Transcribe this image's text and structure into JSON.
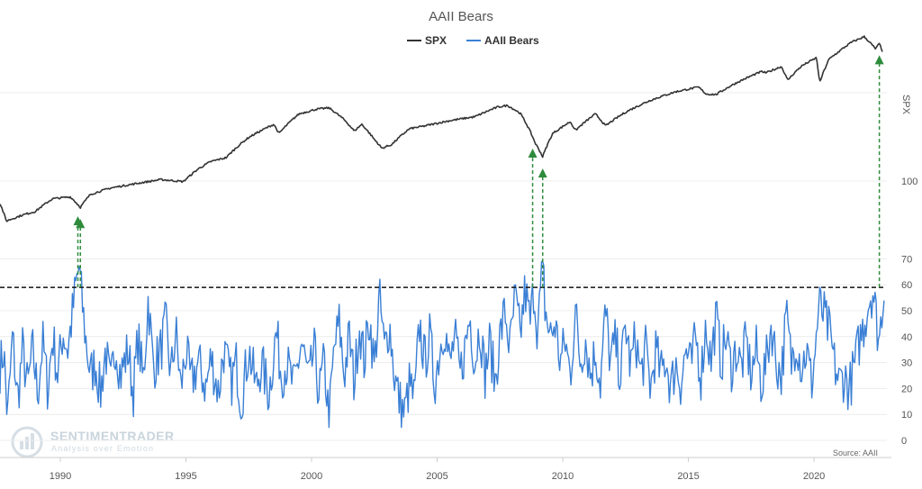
{
  "chart_data": {
    "type": "line",
    "title": "AAII Bears",
    "legend": {
      "placement": "top-center",
      "entries": [
        "SPX",
        "AAII Bears"
      ]
    },
    "colors": {
      "spx": "#333333",
      "bears": "#3a7fd5",
      "threshold": "#111111",
      "arrows": "#2e8b3c"
    },
    "x": {
      "ticks": [
        1990,
        1995,
        2000,
        2005,
        2010,
        2015,
        2020
      ],
      "range": [
        1987.6,
        2022.9
      ]
    },
    "y_bears": {
      "ticks": [
        0,
        10,
        20,
        30,
        40,
        50,
        60,
        70,
        100
      ],
      "range": [
        0,
        100
      ],
      "grid": true
    },
    "y_spx": {
      "label": "SPX",
      "scale": "log",
      "range": [
        260,
        5400
      ]
    },
    "threshold": 59,
    "signals": [
      1990.7,
      1990.8,
      2008.8,
      2009.2,
      2022.6
    ],
    "series": [
      {
        "name": "SPX",
        "points": [
          [
            1987.6,
            320
          ],
          [
            1987.85,
            240
          ],
          [
            1988.5,
            265
          ],
          [
            1989.0,
            280
          ],
          [
            1989.7,
            345
          ],
          [
            1990.4,
            355
          ],
          [
            1990.8,
            300
          ],
          [
            1991.2,
            370
          ],
          [
            1992.0,
            410
          ],
          [
            1993.0,
            440
          ],
          [
            1994.0,
            470
          ],
          [
            1994.9,
            455
          ],
          [
            1995.5,
            560
          ],
          [
            1996.0,
            630
          ],
          [
            1996.6,
            670
          ],
          [
            1997.5,
            930
          ],
          [
            1998.5,
            1150
          ],
          [
            1998.7,
            990
          ],
          [
            1999.5,
            1360
          ],
          [
            2000.2,
            1470
          ],
          [
            2000.7,
            1500
          ],
          [
            2001.3,
            1240
          ],
          [
            2001.7,
            1030
          ],
          [
            2002.0,
            1150
          ],
          [
            2002.5,
            900
          ],
          [
            2002.8,
            780
          ],
          [
            2003.2,
            830
          ],
          [
            2003.9,
            1070
          ],
          [
            2004.5,
            1120
          ],
          [
            2005.5,
            1220
          ],
          [
            2006.5,
            1300
          ],
          [
            2007.4,
            1520
          ],
          [
            2007.8,
            1560
          ],
          [
            2008.3,
            1380
          ],
          [
            2008.9,
            850
          ],
          [
            2009.2,
            680
          ],
          [
            2009.6,
            990
          ],
          [
            2010.3,
            1200
          ],
          [
            2010.5,
            1040
          ],
          [
            2011.3,
            1360
          ],
          [
            2011.7,
            1120
          ],
          [
            2012.5,
            1400
          ],
          [
            2013.5,
            1700
          ],
          [
            2014.5,
            1950
          ],
          [
            2015.4,
            2100
          ],
          [
            2015.7,
            1880
          ],
          [
            2016.1,
            1860
          ],
          [
            2016.8,
            2200
          ],
          [
            2017.9,
            2700
          ],
          [
            2018.1,
            2650
          ],
          [
            2018.7,
            2930
          ],
          [
            2018.95,
            2350
          ],
          [
            2019.5,
            2950
          ],
          [
            2020.1,
            3380
          ],
          [
            2020.22,
            2240
          ],
          [
            2020.6,
            3300
          ],
          [
            2021.0,
            3750
          ],
          [
            2021.5,
            4350
          ],
          [
            2022.0,
            4750
          ],
          [
            2022.45,
            3900
          ],
          [
            2022.6,
            4250
          ],
          [
            2022.75,
            3650
          ]
        ]
      },
      {
        "name": "AAII Bears",
        "points": [
          [
            1987.6,
            28
          ],
          [
            1987.75,
            35
          ],
          [
            1987.9,
            8
          ],
          [
            1988.1,
            40
          ],
          [
            1988.3,
            15
          ],
          [
            1988.5,
            35
          ],
          [
            1988.7,
            20
          ],
          [
            1988.9,
            35
          ],
          [
            1989.1,
            18
          ],
          [
            1989.3,
            38
          ],
          [
            1989.5,
            20
          ],
          [
            1989.7,
            40
          ],
          [
            1989.9,
            25
          ],
          [
            1990.1,
            42
          ],
          [
            1990.3,
            35
          ],
          [
            1990.5,
            50
          ],
          [
            1990.6,
            58
          ],
          [
            1990.75,
            67
          ],
          [
            1990.85,
            55
          ],
          [
            1991.0,
            40
          ],
          [
            1991.2,
            25
          ],
          [
            1991.4,
            30
          ],
          [
            1991.6,
            18
          ],
          [
            1991.8,
            35
          ],
          [
            1992.0,
            20
          ],
          [
            1992.2,
            38
          ],
          [
            1992.4,
            25
          ],
          [
            1992.7,
            35
          ],
          [
            1992.9,
            18
          ],
          [
            1993.1,
            40
          ],
          [
            1993.3,
            22
          ],
          [
            1993.5,
            55
          ],
          [
            1993.7,
            28
          ],
          [
            1994.0,
            35
          ],
          [
            1994.2,
            45
          ],
          [
            1994.4,
            25
          ],
          [
            1994.6,
            42
          ],
          [
            1994.8,
            20
          ],
          [
            1995.0,
            35
          ],
          [
            1995.2,
            22
          ],
          [
            1995.5,
            30
          ],
          [
            1995.8,
            20
          ],
          [
            1996.0,
            32
          ],
          [
            1996.3,
            18
          ],
          [
            1996.5,
            35
          ],
          [
            1996.8,
            22
          ],
          [
            1997.0,
            30
          ],
          [
            1997.2,
            15
          ],
          [
            1997.5,
            35
          ],
          [
            1997.8,
            20
          ],
          [
            1998.0,
            30
          ],
          [
            1998.3,
            18
          ],
          [
            1998.6,
            42
          ],
          [
            1998.8,
            25
          ],
          [
            1999.0,
            30
          ],
          [
            1999.3,
            20
          ],
          [
            1999.6,
            38
          ],
          [
            1999.9,
            22
          ],
          [
            2000.1,
            35
          ],
          [
            2000.3,
            18
          ],
          [
            2000.5,
            30
          ],
          [
            2000.7,
            8
          ],
          [
            2000.9,
            35
          ],
          [
            2001.1,
            45
          ],
          [
            2001.3,
            25
          ],
          [
            2001.5,
            40
          ],
          [
            2001.7,
            22
          ],
          [
            2001.9,
            45
          ],
          [
            2002.1,
            30
          ],
          [
            2002.3,
            48
          ],
          [
            2002.5,
            28
          ],
          [
            2002.7,
            55
          ],
          [
            2002.9,
            35
          ],
          [
            2003.1,
            45
          ],
          [
            2003.3,
            25
          ],
          [
            2003.5,
            15
          ],
          [
            2003.7,
            10
          ],
          [
            2003.9,
            22
          ],
          [
            2004.1,
            15
          ],
          [
            2004.3,
            45
          ],
          [
            2004.5,
            30
          ],
          [
            2004.7,
            40
          ],
          [
            2004.9,
            22
          ],
          [
            2005.1,
            35
          ],
          [
            2005.3,
            45
          ],
          [
            2005.5,
            28
          ],
          [
            2005.7,
            40
          ],
          [
            2005.9,
            25
          ],
          [
            2006.1,
            35
          ],
          [
            2006.3,
            48
          ],
          [
            2006.5,
            30
          ],
          [
            2006.7,
            45
          ],
          [
            2006.9,
            25
          ],
          [
            2007.1,
            38
          ],
          [
            2007.3,
            22
          ],
          [
            2007.5,
            40
          ],
          [
            2007.7,
            50
          ],
          [
            2007.9,
            35
          ],
          [
            2008.1,
            55
          ],
          [
            2008.3,
            40
          ],
          [
            2008.5,
            58
          ],
          [
            2008.7,
            45
          ],
          [
            2008.85,
            59
          ],
          [
            2009.0,
            42
          ],
          [
            2009.1,
            55
          ],
          [
            2009.2,
            70
          ],
          [
            2009.3,
            50
          ],
          [
            2009.5,
            40
          ],
          [
            2009.7,
            45
          ],
          [
            2009.9,
            30
          ],
          [
            2010.1,
            38
          ],
          [
            2010.3,
            25
          ],
          [
            2010.5,
            50
          ],
          [
            2010.7,
            30
          ],
          [
            2010.9,
            40
          ],
          [
            2011.1,
            25
          ],
          [
            2011.3,
            35
          ],
          [
            2011.5,
            22
          ],
          [
            2011.7,
            50
          ],
          [
            2011.9,
            30
          ],
          [
            2012.1,
            38
          ],
          [
            2012.3,
            25
          ],
          [
            2012.5,
            45
          ],
          [
            2012.7,
            28
          ],
          [
            2012.9,
            40
          ],
          [
            2013.1,
            25
          ],
          [
            2013.3,
            35
          ],
          [
            2013.5,
            20
          ],
          [
            2013.7,
            35
          ],
          [
            2013.9,
            25
          ],
          [
            2014.1,
            32
          ],
          [
            2014.3,
            20
          ],
          [
            2014.5,
            30
          ],
          [
            2014.7,
            22
          ],
          [
            2014.9,
            35
          ],
          [
            2015.1,
            28
          ],
          [
            2015.3,
            40
          ],
          [
            2015.5,
            25
          ],
          [
            2015.7,
            45
          ],
          [
            2015.9,
            30
          ],
          [
            2016.1,
            48
          ],
          [
            2016.3,
            30
          ],
          [
            2016.5,
            40
          ],
          [
            2016.7,
            28
          ],
          [
            2016.9,
            35
          ],
          [
            2017.1,
            28
          ],
          [
            2017.3,
            38
          ],
          [
            2017.5,
            25
          ],
          [
            2017.7,
            35
          ],
          [
            2017.9,
            22
          ],
          [
            2018.1,
            30
          ],
          [
            2018.3,
            45
          ],
          [
            2018.5,
            30
          ],
          [
            2018.7,
            25
          ],
          [
            2018.9,
            48
          ],
          [
            2019.1,
            30
          ],
          [
            2019.3,
            40
          ],
          [
            2019.5,
            28
          ],
          [
            2019.7,
            35
          ],
          [
            2019.9,
            22
          ],
          [
            2020.0,
            30
          ],
          [
            2020.2,
            52
          ],
          [
            2020.4,
            48
          ],
          [
            2020.6,
            42
          ],
          [
            2020.8,
            30
          ],
          [
            2021.0,
            22
          ],
          [
            2021.2,
            25
          ],
          [
            2021.4,
            20
          ],
          [
            2021.6,
            28
          ],
          [
            2021.8,
            38
          ],
          [
            2022.0,
            45
          ],
          [
            2022.2,
            55
          ],
          [
            2022.35,
            58
          ],
          [
            2022.5,
            45
          ],
          [
            2022.6,
            38
          ],
          [
            2022.75,
            57
          ],
          [
            2022.82,
            55
          ]
        ]
      }
    ]
  },
  "source": "Source: AAII",
  "watermark": {
    "name": "SENTIMENTRADER",
    "tagline": "Analysis over Emotion"
  }
}
